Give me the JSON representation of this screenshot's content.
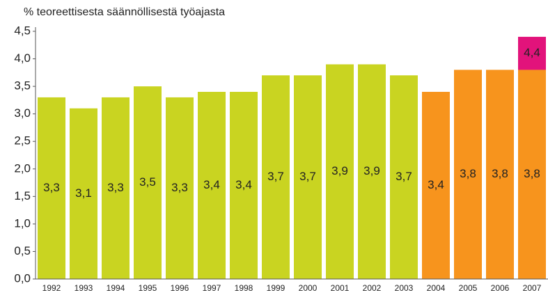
{
  "chart_data": {
    "type": "bar",
    "title": "% teoreettisesta säännöllisestä työajasta",
    "categories": [
      "1992",
      "1993",
      "1994",
      "1995",
      "1996",
      "1997",
      "1998",
      "1999",
      "2000",
      "2001",
      "2002",
      "2003",
      "2004",
      "2005",
      "2006",
      "2007"
    ],
    "series": [
      {
        "values": [
          null,
          null,
          null,
          null,
          null,
          null,
          null,
          null,
          null,
          null,
          null,
          null,
          null,
          null,
          null,
          4.4
        ],
        "value_labels": [
          null,
          null,
          null,
          null,
          null,
          null,
          null,
          null,
          null,
          null,
          null,
          null,
          null,
          null,
          null,
          "4,4"
        ],
        "color": "#e2137b"
      },
      {
        "values": [
          3.3,
          3.1,
          3.3,
          3.5,
          3.3,
          3.4,
          3.4,
          3.7,
          3.7,
          3.9,
          3.9,
          3.7,
          3.4,
          3.8,
          3.8,
          3.8
        ],
        "value_labels": [
          "3,3",
          "3,1",
          "3,3",
          "3,5",
          "3,3",
          "3,4",
          "3,4",
          "3,7",
          "3,7",
          "3,9",
          "3,9",
          "3,7",
          "3,4",
          "3,8",
          "3,8",
          "3,8"
        ],
        "colors": [
          "#c9d421",
          "#c9d421",
          "#c9d421",
          "#c9d421",
          "#c9d421",
          "#c9d421",
          "#c9d421",
          "#c9d421",
          "#c9d421",
          "#c9d421",
          "#c9d421",
          "#c9d421",
          "#f7941d",
          "#f7941d",
          "#f7941d",
          "#f7941d"
        ]
      }
    ],
    "ylim": [
      0,
      4.5
    ],
    "yticks": [
      {
        "value": 0,
        "label": "0,0"
      },
      {
        "value": 0.5,
        "label": "0,5"
      },
      {
        "value": 1,
        "label": "1,0"
      },
      {
        "value": 1.5,
        "label": "1,5"
      },
      {
        "value": 2,
        "label": "2,0"
      },
      {
        "value": 2.5,
        "label": "2,5"
      },
      {
        "value": 3,
        "label": "3,0"
      },
      {
        "value": 3.5,
        "label": "3,5"
      },
      {
        "value": 4,
        "label": "4,0"
      },
      {
        "value": 4.5,
        "label": "4,5"
      }
    ],
    "grid": false
  }
}
